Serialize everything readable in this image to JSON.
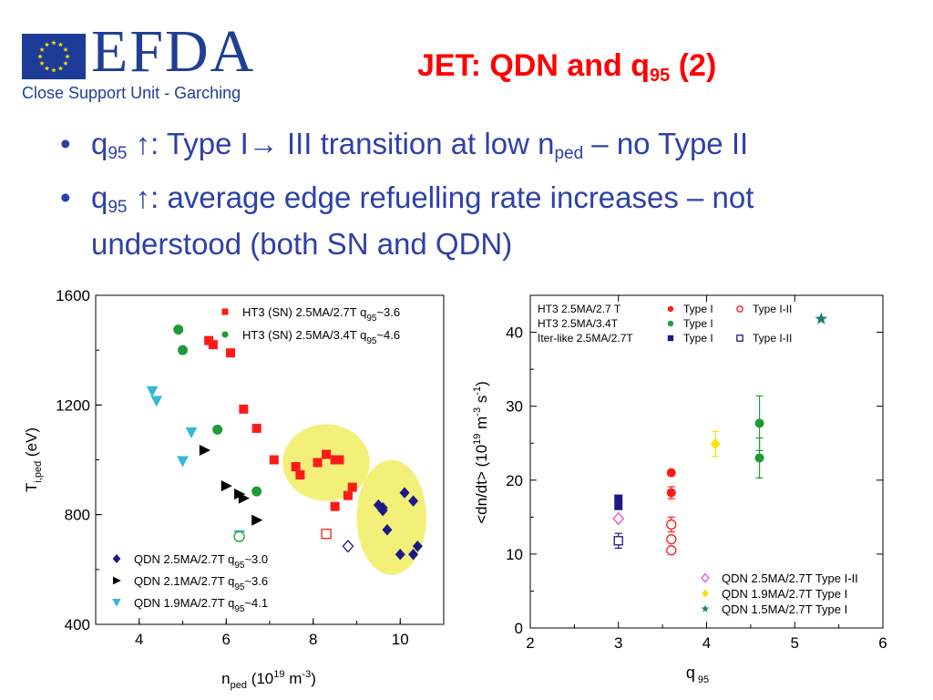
{
  "header": {
    "logo_text": "EFDA",
    "logo_subtitle": "Close Support Unit - Garching",
    "title_main": "JET: QDN and q",
    "title_sub": "95",
    "title_tail": " (2)"
  },
  "bullets": [
    {
      "symbol": "•",
      "q": "q",
      "q_sub": "95",
      "arrow": "↑",
      "text_a": ": Type I",
      "arrow2": "→",
      "text_b": " III transition at low n",
      "n_sub": "ped",
      "text_c": " – no Type II"
    },
    {
      "symbol": "•",
      "q": "q",
      "q_sub": "95",
      "arrow": "↑",
      "text_a": ": average edge refuelling rate increases – not understood  (both SN and QDN)"
    }
  ],
  "colors": {
    "title_red": "#ff0000",
    "bullet_blue": "#2e40a8",
    "logo_blue": "#1f3f93",
    "eu_blue": "#1c3c97",
    "eu_star": "#ffdd00",
    "red": "#ff1a1a",
    "green": "#1e9b36",
    "navy": "#1c1a86",
    "black": "#000000",
    "cyan": "#33b8d8",
    "highlight_yellow": "#f3f07a",
    "magenta": "#e34dd8",
    "yellow": "#f5e400",
    "teal": "#1f7f78"
  },
  "chart_data": [
    {
      "type": "scatter",
      "xlabel": "n",
      "xlabel_sub": "ped",
      "xlabel_units": " (10",
      "xlabel_exp": "19",
      "xlabel_units2": " m",
      "xlabel_exp2": "-3",
      "xlabel_end": ")",
      "ylabel": "T",
      "ylabel_sub": "i,ped",
      "ylabel_units": " (eV)",
      "xlim": [
        3,
        11
      ],
      "ylim": [
        400,
        1600
      ],
      "xticks": [
        4,
        6,
        8,
        10
      ],
      "yticks": [
        400,
        800,
        1200,
        1600
      ],
      "highlights": [
        {
          "cx": 8.3,
          "cy": 990,
          "rx": 1.0,
          "ry": 140
        },
        {
          "cx": 9.8,
          "cy": 790,
          "rx": 0.8,
          "ry": 210
        }
      ],
      "series": [
        {
          "name": "HT3 (SN) 2.5MA/2.7T q",
          "name_sub": "95",
          "name_tail": "~3.6",
          "marker": "square",
          "filled": true,
          "color": "#ff1a1a",
          "points": [
            [
              5.6,
              1435
            ],
            [
              5.7,
              1420
            ],
            [
              6.1,
              1390
            ],
            [
              6.4,
              1185
            ],
            [
              6.7,
              1115
            ],
            [
              7.1,
              1000
            ],
            [
              7.6,
              975
            ],
            [
              7.7,
              945
            ],
            [
              8.1,
              990
            ],
            [
              8.3,
              1020
            ],
            [
              8.5,
              1000
            ],
            [
              8.6,
              1000
            ],
            [
              8.8,
              870
            ],
            [
              8.9,
              900
            ],
            [
              8.5,
              830
            ]
          ]
        },
        {
          "name": "HT3 (SN) 2.5MA/3.4T q",
          "name_sub": "95",
          "name_tail": "~4.6",
          "marker": "circle",
          "filled": true,
          "color": "#1e9b36",
          "points": [
            [
              4.9,
              1475
            ],
            [
              5.0,
              1400
            ],
            [
              5.8,
              1110
            ],
            [
              6.7,
              885
            ]
          ]
        },
        {
          "name": "QDN 2.5MA/2.7T q",
          "name_sub": "95",
          "name_tail": "~3.0",
          "marker": "diamond",
          "filled": true,
          "color": "#1c1a86",
          "points": [
            [
              9.5,
              835
            ],
            [
              9.6,
              825
            ],
            [
              9.6,
              815
            ],
            [
              9.7,
              745
            ],
            [
              10.1,
              880
            ],
            [
              10.3,
              850
            ],
            [
              10.0,
              655
            ],
            [
              10.4,
              685
            ],
            [
              10.3,
              655
            ]
          ]
        },
        {
          "name": "QDN 2.1MA/2.7T q",
          "name_sub": "95",
          "name_tail": "~3.6",
          "marker": "triangle-right",
          "filled": true,
          "color": "#000000",
          "points": [
            [
              5.5,
              1035
            ],
            [
              6.0,
              905
            ],
            [
              6.3,
              875
            ],
            [
              6.4,
              860
            ],
            [
              6.7,
              780
            ]
          ]
        },
        {
          "name": "QDN 1.9MA/2.7T q",
          "name_sub": "95",
          "name_tail": "~4.1",
          "marker": "triangle-down",
          "filled": true,
          "color": "#33b8d8",
          "points": [
            [
              4.3,
              1250
            ],
            [
              4.4,
              1215
            ],
            [
              5.2,
              1100
            ],
            [
              5.0,
              995
            ],
            [
              6.3,
              725
            ]
          ]
        }
      ],
      "extra_points": [
        {
          "marker": "square",
          "filled": false,
          "color": "#ff1a1a",
          "x": 8.3,
          "y": 730
        },
        {
          "marker": "diamond",
          "filled": false,
          "color": "#1c1a86",
          "x": 8.8,
          "y": 685
        },
        {
          "marker": "circle",
          "filled": false,
          "color": "#1e9b36",
          "x": 6.3,
          "y": 720
        }
      ]
    },
    {
      "type": "scatter",
      "xlabel": "q",
      "xlabel_sub": " 95",
      "ylabel": "<dn/dt> (10",
      "ylabel_exp": "19",
      "ylabel_mid": " m",
      "ylabel_exp2": "-3",
      "ylabel_mid2": " s",
      "ylabel_exp3": "-1",
      "ylabel_end": ")",
      "xlim": [
        2,
        6
      ],
      "ylim": [
        0,
        45
      ],
      "xticks": [
        2,
        3,
        4,
        5,
        6
      ],
      "yticks": [
        0,
        10,
        20,
        30,
        40
      ],
      "legend_top_rows": [
        {
          "label": "HT3 2.5MA/2.7 T",
          "a_label": "Type I",
          "a_marker": "circle",
          "a_filled": true,
          "a_color": "#ff1a1a",
          "b_label": "Type I-II",
          "b_marker": "circle",
          "b_filled": false,
          "b_color": "#ff1a1a"
        },
        {
          "label": "HT3 2.5MA/3.4T",
          "a_label": "Type I",
          "a_marker": "circle",
          "a_filled": true,
          "a_color": "#1e9b36"
        },
        {
          "label": "Iter-like 2.5MA/2.7T",
          "a_label": "Type I",
          "a_marker": "square",
          "a_filled": true,
          "a_color": "#1c1a86",
          "b_label": "Type I-II",
          "b_marker": "square",
          "b_filled": false,
          "b_color": "#1c1a86"
        }
      ],
      "legend_bottom_rows": [
        {
          "label": "QDN 2.5MA/2.7T Type I-II",
          "marker": "diamond",
          "filled": false,
          "color": "#e34dd8"
        },
        {
          "label": "QDN 1.9MA/2.7T Type I",
          "marker": "diamond",
          "filled": true,
          "color": "#f5e400"
        },
        {
          "label": "QDN 1.5MA/2.7T Type I",
          "marker": "star",
          "filled": true,
          "color": "#1f7f78"
        }
      ],
      "points": [
        {
          "x": 3.0,
          "y": 17.5,
          "marker": "square",
          "filled": true,
          "color": "#1c1a86"
        },
        {
          "x": 3.0,
          "y": 16.5,
          "marker": "square",
          "filled": true,
          "color": "#1c1a86"
        },
        {
          "x": 3.0,
          "y": 11.8,
          "marker": "square",
          "filled": false,
          "color": "#1c1a86",
          "err": 1.0
        },
        {
          "x": 3.0,
          "y": 14.8,
          "marker": "diamond",
          "filled": false,
          "color": "#e34dd8"
        },
        {
          "x": 3.6,
          "y": 21.0,
          "marker": "circle",
          "filled": true,
          "color": "#ff1a1a"
        },
        {
          "x": 3.6,
          "y": 18.3,
          "marker": "circle",
          "filled": true,
          "color": "#ff1a1a",
          "err": 0.8
        },
        {
          "x": 3.6,
          "y": 14.0,
          "marker": "circle",
          "filled": false,
          "color": "#ff1a1a",
          "err": 1.0
        },
        {
          "x": 3.6,
          "y": 12.0,
          "marker": "circle",
          "filled": false,
          "color": "#ff1a1a"
        },
        {
          "x": 3.6,
          "y": 10.5,
          "marker": "circle",
          "filled": false,
          "color": "#ff1a1a"
        },
        {
          "x": 4.1,
          "y": 24.9,
          "marker": "diamond",
          "filled": true,
          "color": "#f5e400",
          "err": 1.7
        },
        {
          "x": 4.6,
          "y": 27.7,
          "marker": "circle",
          "filled": true,
          "color": "#1e9b36",
          "err": 3.7
        },
        {
          "x": 4.6,
          "y": 23.0,
          "marker": "circle",
          "filled": true,
          "color": "#1e9b36",
          "err": 2.7
        },
        {
          "x": 5.3,
          "y": 41.8,
          "marker": "star",
          "filled": true,
          "color": "#1f7f78"
        }
      ]
    }
  ]
}
